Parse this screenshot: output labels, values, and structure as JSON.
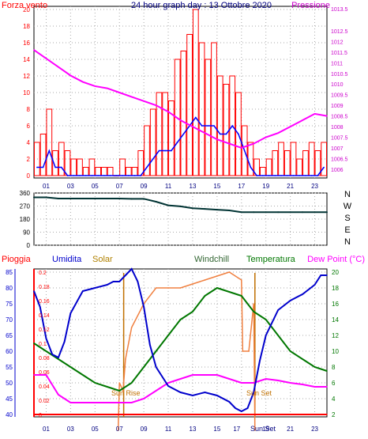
{
  "title": "24 hour graph day : 13 Ottobre 2020",
  "colors": {
    "wind": "#ff0000",
    "gust_line": "#0000ff",
    "pressure": "#ff00ff",
    "direction": "#003333",
    "humidity": "#0000cc",
    "solar": "#f08040",
    "windchill": "#336633",
    "temperature": "#007700",
    "dewpoint": "#ff00ff",
    "rain": "#ff0000",
    "grid": "#aaaaaa",
    "ticks": "#000080"
  },
  "x_ticks": [
    "01",
    "03",
    "05",
    "07",
    "09",
    "11",
    "13",
    "15",
    "17",
    "19",
    "21",
    "23"
  ],
  "chart_data": [
    {
      "type": "bar",
      "id": "wind_pressure",
      "left_label": "Forza vento",
      "right_label": "Pressione",
      "left_ticks": [
        "0",
        "2",
        "4",
        "6",
        "8",
        "10",
        "12",
        "14",
        "16",
        "18",
        "20"
      ],
      "right_ticks": [
        "1006",
        "1006.5",
        "1007",
        "1007.5",
        "1008",
        "1008.5",
        "1009",
        "1009.5",
        "1010",
        "1010.5",
        "1011",
        "1011.5",
        "1012",
        "1012.5",
        "1013.5"
      ],
      "ylim_left": [
        0,
        20
      ],
      "ylim_right": [
        1005.7,
        1013.5
      ],
      "grid": true,
      "wind_series": {
        "x": [
          0,
          0.5,
          1,
          1.5,
          2,
          2.5,
          3,
          3.5,
          4,
          4.5,
          5,
          5.5,
          6,
          6.5,
          7,
          7.5,
          8,
          8.5,
          9,
          9.5,
          10,
          10.5,
          11,
          11.5,
          12,
          12.5,
          13,
          13.5,
          14,
          14.5,
          15,
          15.5,
          16,
          16.5,
          17,
          17.5,
          18,
          18.5,
          19,
          19.5,
          20,
          20.5,
          21,
          21.5,
          22,
          22.5,
          23,
          23.5
        ],
        "max": [
          4,
          5,
          8,
          3,
          4,
          3,
          2,
          2,
          1,
          2,
          1,
          1,
          1,
          0,
          2,
          1,
          1,
          3,
          6,
          8,
          10,
          10,
          9,
          14,
          15,
          17,
          20,
          16,
          14,
          16,
          12,
          11,
          12,
          10,
          6,
          4,
          2,
          1,
          2,
          3,
          4,
          3,
          4,
          2,
          3,
          4,
          3,
          4
        ],
        "avg": [
          1,
          1,
          3,
          1,
          1,
          0,
          0,
          0,
          0,
          0,
          0,
          0,
          0,
          0,
          0,
          0,
          0,
          0,
          1,
          2,
          3,
          3,
          3,
          4,
          5,
          6,
          7,
          6,
          6,
          6,
          5,
          5,
          6,
          5,
          3,
          1,
          0,
          0,
          0,
          0,
          0,
          0,
          0,
          0,
          0,
          0,
          0,
          1
        ]
      },
      "pressure_series": {
        "x": [
          0,
          1,
          2,
          3,
          4,
          5,
          6,
          7,
          8,
          9,
          10,
          11,
          12,
          13,
          14,
          15,
          16,
          17,
          18,
          19,
          20,
          21,
          22,
          23,
          24
        ],
        "values": [
          1011.6,
          1011.2,
          1010.8,
          1010.4,
          1010.1,
          1009.9,
          1009.8,
          1009.6,
          1009.4,
          1009.2,
          1009.0,
          1008.7,
          1008.3,
          1008.0,
          1007.7,
          1007.4,
          1007.2,
          1007.0,
          1007.2,
          1007.5,
          1007.7,
          1008.0,
          1008.3,
          1008.6,
          1008.5
        ]
      }
    },
    {
      "type": "line",
      "id": "wind_direction",
      "left_ticks": [
        "0",
        "90",
        "180",
        "270",
        "360"
      ],
      "right_labels": [
        "N",
        "W",
        "S",
        "E",
        "N"
      ],
      "ylim": [
        0,
        360
      ],
      "direction_series": {
        "x": [
          0,
          1,
          2,
          3,
          4,
          5,
          6,
          7,
          8,
          9,
          10,
          11,
          12,
          13,
          14,
          15,
          16,
          17,
          18,
          19,
          20,
          21,
          22,
          23,
          24
        ],
        "values": [
          330,
          330,
          322,
          322,
          322,
          322,
          322,
          322,
          320,
          320,
          300,
          275,
          268,
          255,
          250,
          245,
          240,
          228,
          228,
          228,
          228,
          228,
          228,
          228,
          228
        ]
      }
    },
    {
      "type": "line",
      "id": "humidity_temp",
      "labels": [
        "Pioggia",
        "Umidita",
        "Solar",
        "Windchill",
        "Temperatura",
        "Dew Point (°C)"
      ],
      "rain_ticks": [
        "0",
        "0.02",
        "0.04",
        "0.06",
        "0.08",
        "0.1",
        "0.12",
        "0.14",
        "0.16",
        "0.18",
        "0.2"
      ],
      "humidity_ticks": [
        "40",
        "45",
        "50",
        "55",
        "60",
        "65",
        "70",
        "75",
        "80",
        "85"
      ],
      "temp_ticks": [
        "2",
        "4",
        "6",
        "8",
        "10",
        "12",
        "14",
        "16",
        "18",
        "20"
      ],
      "annotations": [
        "Sun Rise",
        "Sun Set"
      ],
      "sunset_tick": "Sun Set",
      "humidity": {
        "x": [
          0,
          0.5,
          1,
          1.5,
          2,
          2.5,
          3,
          4,
          5,
          6,
          6.5,
          7,
          7.5,
          8,
          8.5,
          9,
          9.5,
          10,
          11,
          12,
          13,
          14,
          15,
          16,
          16.5,
          17,
          17.5,
          18,
          18.5,
          19,
          20,
          21,
          22,
          23,
          23.5,
          24
        ],
        "values": [
          79,
          74,
          64,
          59,
          58,
          63,
          72,
          79,
          80,
          81,
          82,
          82,
          84,
          86,
          82,
          74,
          62,
          55,
          49,
          47,
          46,
          47,
          46,
          44,
          42,
          41,
          42,
          47,
          57,
          65,
          73,
          76,
          78,
          81,
          84,
          84
        ]
      },
      "temperature": {
        "x": [
          0,
          1,
          2,
          3,
          4,
          5,
          6,
          7,
          8,
          9,
          10,
          11,
          12,
          13,
          14,
          15,
          16,
          17,
          18,
          19,
          20,
          21,
          22,
          23,
          24
        ],
        "values": [
          11,
          10,
          9,
          8,
          7,
          6,
          5.5,
          5,
          6,
          8,
          10,
          12,
          14,
          15,
          17,
          18,
          17.5,
          17,
          15,
          14,
          12,
          10,
          9,
          8,
          7.5
        ]
      },
      "dewpoint": {
        "x": [
          0,
          1,
          2,
          3,
          4,
          5,
          6,
          7,
          8,
          9,
          10,
          11,
          12,
          13,
          14,
          15,
          16,
          17,
          18,
          19,
          20,
          21,
          22,
          23,
          24
        ],
        "values": [
          7,
          7,
          4.5,
          3.5,
          3.5,
          3.5,
          3.5,
          3.5,
          3.5,
          4,
          5,
          6,
          6.5,
          7,
          7,
          7,
          6.5,
          6,
          6,
          6.5,
          6.3,
          6,
          5.8,
          5.5,
          5.5
        ]
      },
      "solar": {
        "x": [
          6.9,
          7.0,
          7.3,
          7.5,
          8,
          9,
          10,
          11,
          12,
          13,
          14,
          15,
          16,
          17,
          17.1,
          17.6,
          18,
          18.1
        ],
        "values": [
          0,
          6,
          5,
          9,
          13,
          16,
          18,
          18,
          18,
          18.5,
          19,
          19.5,
          20,
          19,
          10,
          10,
          16,
          0
        ]
      },
      "rain": {
        "x": [
          0,
          24
        ],
        "values": [
          0,
          0
        ]
      }
    }
  ]
}
